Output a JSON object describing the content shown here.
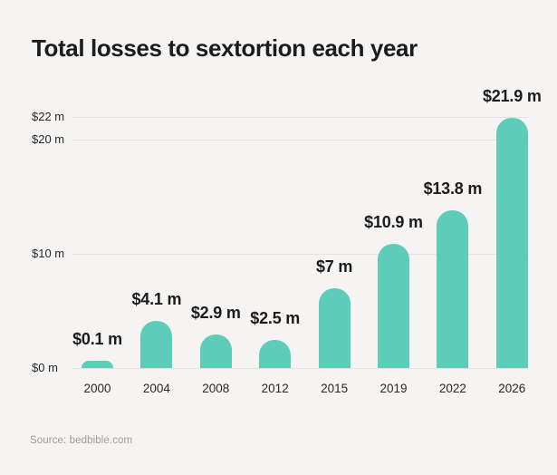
{
  "title": "Total losses to sextortion each year",
  "source": "Source: bedbible.com",
  "colors": {
    "accent": "#5DCDB9",
    "background": "#F5F4F3",
    "text_dark": "#1B1C1E",
    "grid": "#E4E3E1",
    "muted": "#9C9C9C"
  },
  "chart_data": {
    "type": "bar",
    "title": "Total losses to sextortion each year",
    "categories": [
      "2000",
      "2004",
      "2008",
      "2012",
      "2015",
      "2019",
      "2022",
      "2026"
    ],
    "values": [
      0.1,
      4.1,
      2.9,
      2.5,
      7,
      10.9,
      13.8,
      21.9
    ],
    "bar_labels": [
      "$0.1 m",
      "$4.1 m",
      "$2.9 m",
      "$2.5 m",
      "$7 m",
      "$10.9 m",
      "$13.8 m",
      "$21.9 m"
    ],
    "xlabel": "",
    "ylabel": "",
    "ylim": [
      0,
      22
    ],
    "yticks": [
      {
        "value": 22,
        "label": "$22 m"
      },
      {
        "value": 20,
        "label": "$20 m"
      },
      {
        "value": 10,
        "label": "$10 m"
      },
      {
        "value": 0,
        "label": "$0 m"
      }
    ],
    "grid": true,
    "legend": false,
    "bar_color": "#5DCDB9"
  }
}
